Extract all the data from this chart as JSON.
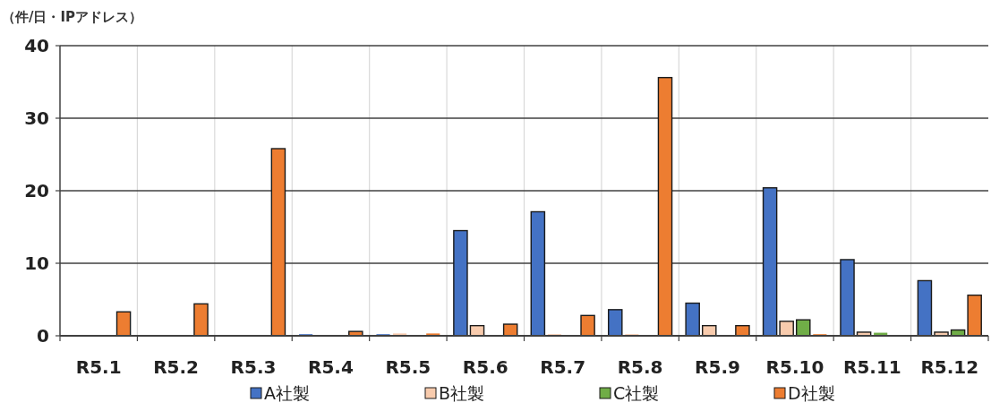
{
  "chart_data": {
    "type": "bar",
    "ylabel": "（件/日・IPアドレス）",
    "categories": [
      "R5.1",
      "R5.2",
      "R5.3",
      "R5.4",
      "R5.5",
      "R5.6",
      "R5.7",
      "R5.8",
      "R5.9",
      "R5.10",
      "R5.11",
      "R5.12"
    ],
    "series": [
      {
        "name": "A社製",
        "color": "#4472c4",
        "values": [
          null,
          null,
          null,
          0.1,
          0.1,
          14.5,
          17.1,
          3.6,
          4.5,
          20.4,
          10.5,
          7.6
        ]
      },
      {
        "name": "B社製",
        "color": "#f8cbad",
        "values": [
          null,
          null,
          null,
          null,
          0.2,
          1.4,
          0.1,
          0.1,
          1.4,
          2.0,
          0.5,
          0.5
        ]
      },
      {
        "name": "C社製",
        "color": "#70ad47",
        "values": [
          null,
          null,
          null,
          null,
          null,
          null,
          null,
          null,
          null,
          2.2,
          0.3,
          0.8
        ]
      },
      {
        "name": "D社製",
        "color": "#ed7d31",
        "values": [
          3.3,
          4.4,
          25.8,
          0.6,
          0.2,
          1.6,
          2.8,
          35.6,
          1.4,
          0.1,
          null,
          5.6
        ]
      }
    ],
    "ylim": [
      0,
      40
    ],
    "yticks": [
      0,
      10,
      20,
      30,
      40
    ],
    "grid": true,
    "legend": "bottom"
  }
}
